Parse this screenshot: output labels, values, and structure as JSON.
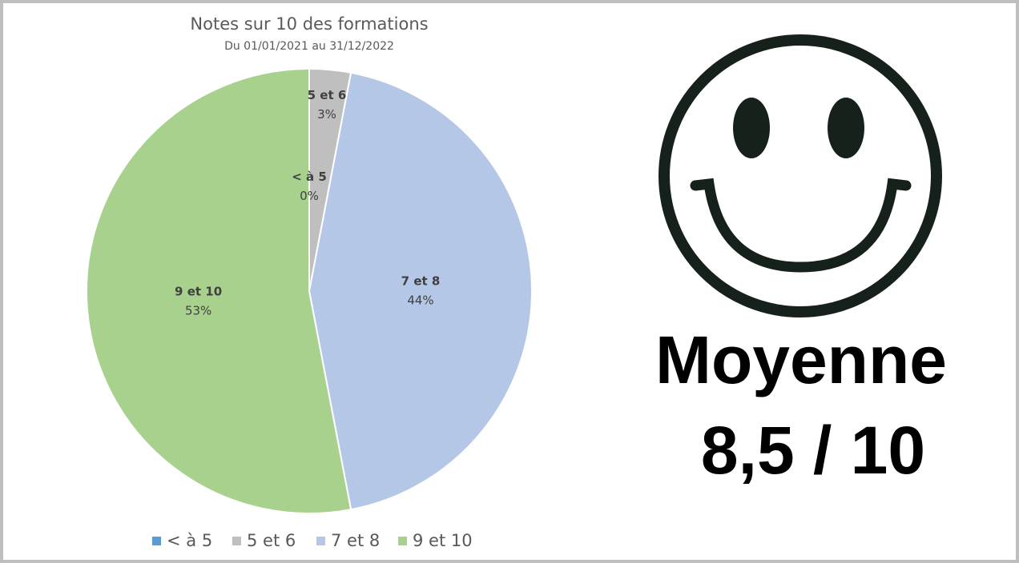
{
  "chart_data": {
    "type": "pie",
    "title": "Notes sur 10 des formations",
    "subtitle": "Du 01/01/2021 au 31/12/2022",
    "categories": [
      "< à 5",
      "5 et 6",
      "7 et 8",
      "9 et 10"
    ],
    "values": [
      0,
      3,
      44,
      53
    ],
    "value_labels": [
      "0%",
      "3%",
      "44%",
      "53%"
    ],
    "colors": [
      "#5b9bd5",
      "#bfbfbf",
      "#b4c7e7",
      "#a9d18e"
    ],
    "legend": "bottom",
    "annotations": [
      "Moyenne",
      "8,5 / 10"
    ]
  }
}
